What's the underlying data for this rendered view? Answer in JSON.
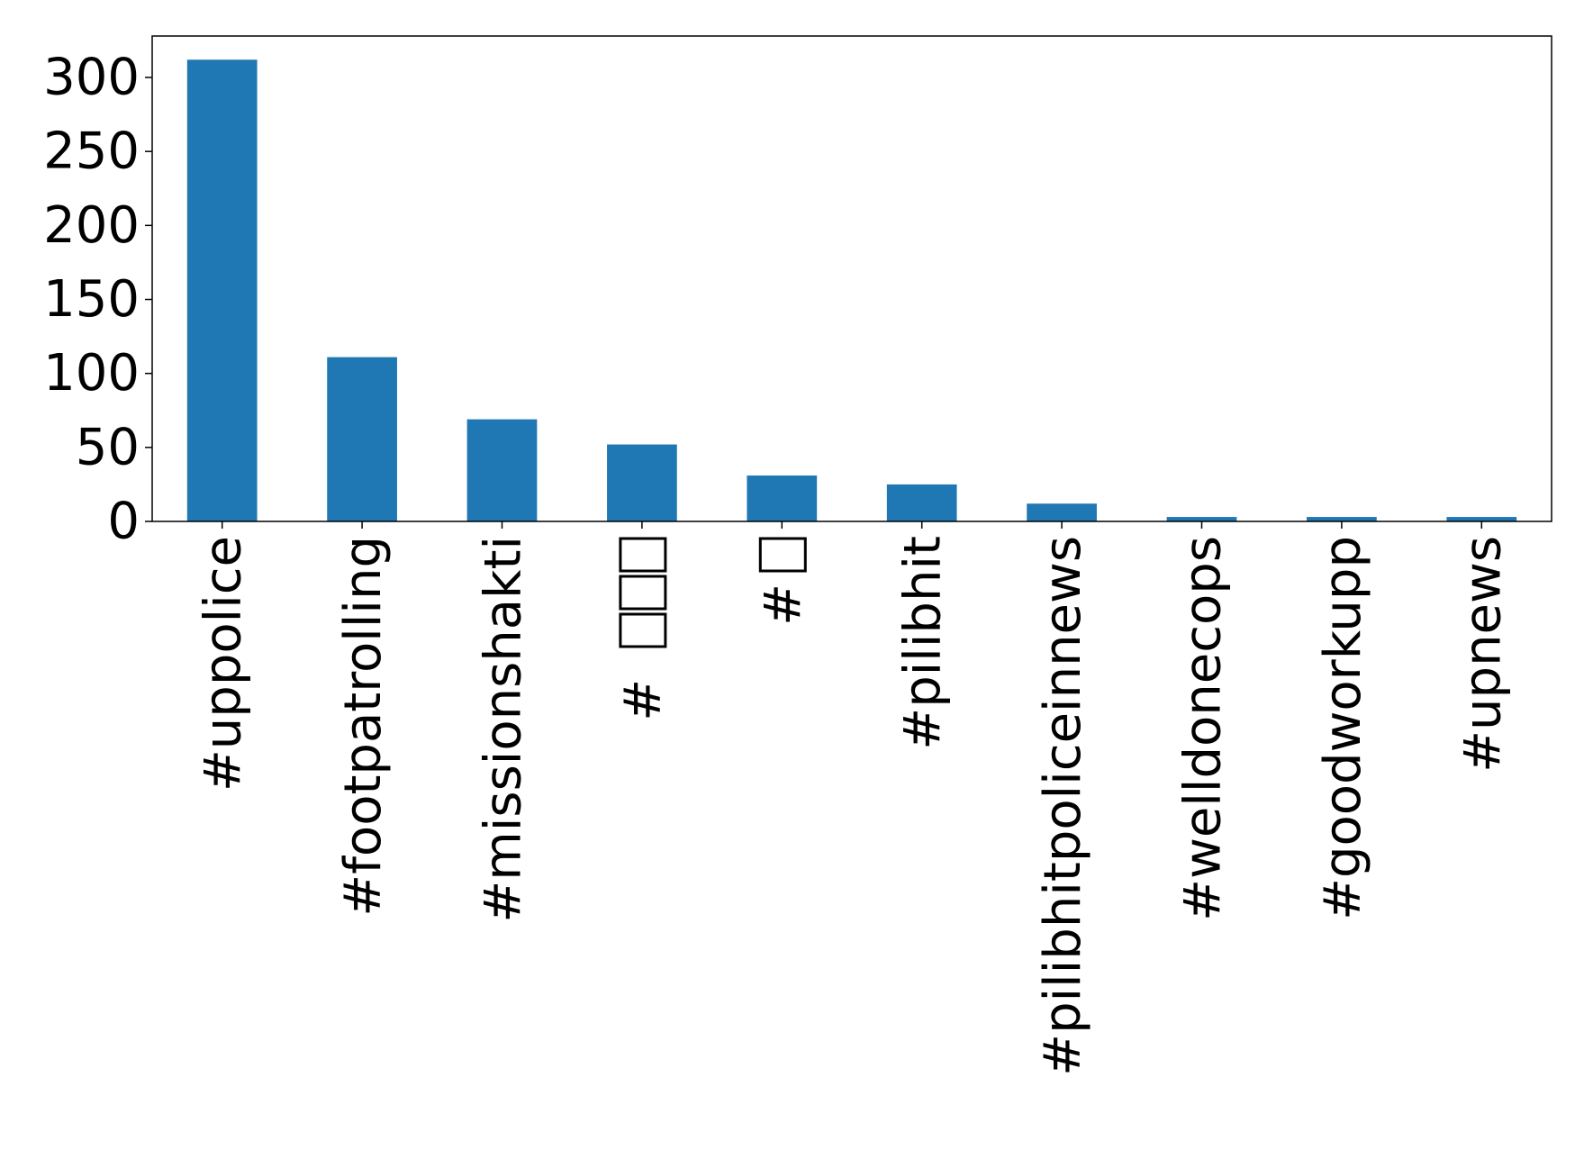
{
  "chart_data": {
    "type": "bar",
    "title": "",
    "xlabel": "",
    "ylabel": "",
    "ylim": [
      0,
      328
    ],
    "yticks": [
      0,
      50,
      100,
      150,
      200,
      250,
      300
    ],
    "ytick_labels": [
      "0",
      "50",
      "100",
      "150",
      "200",
      "250",
      "300"
    ],
    "grid": false,
    "legend": "none",
    "bar_color": "#1f77b4",
    "categories": [
      "#uppolice",
      "#footpatrolling",
      "#missionshakti",
      "#□□□",
      "#□",
      "#pilibhit",
      "#pilibhitpoliceinnews",
      "#welldonecops",
      "#goodworkupp",
      "#upnews"
    ],
    "values": [
      312,
      111,
      69,
      52,
      31,
      25,
      12,
      3,
      3,
      3
    ]
  }
}
